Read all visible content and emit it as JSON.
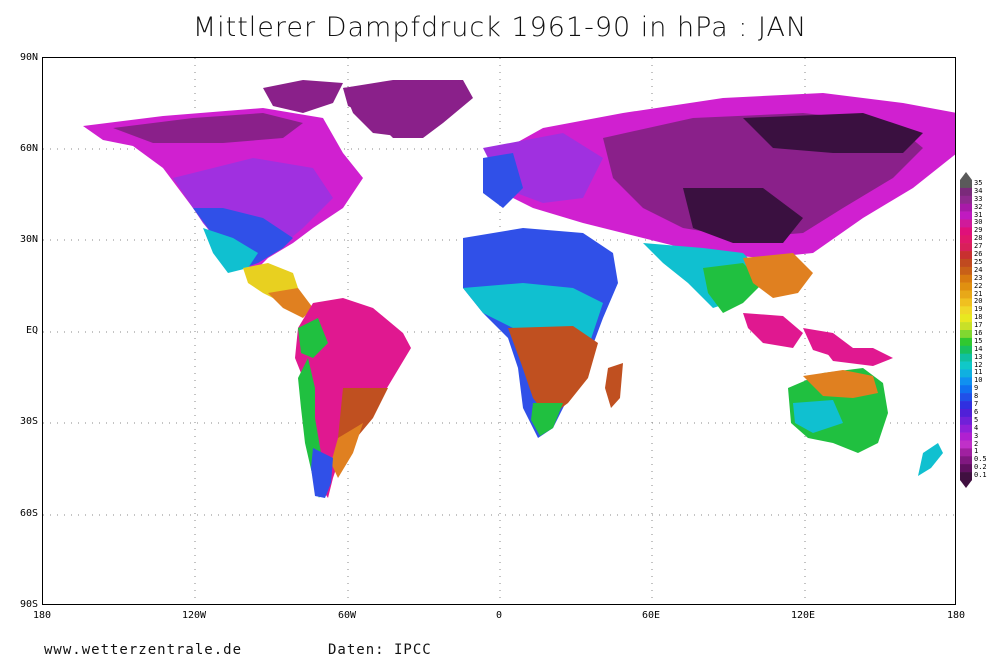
{
  "title": "Mittlerer Dampfdruck 1961-90 in hPa : JAN",
  "lat_labels": [
    "90N",
    "60N",
    "30N",
    "EQ",
    "30S",
    "60S",
    "90S"
  ],
  "lon_labels": [
    "180",
    "120W",
    "60W",
    "0",
    "60E",
    "120E",
    "180"
  ],
  "footer": {
    "source_site": "www.wetterzentrale.de",
    "data_credit": "Daten: IPCC"
  },
  "colorbar": {
    "levels": [
      "35",
      "34",
      "33",
      "32",
      "31",
      "30",
      "29",
      "28",
      "27",
      "26",
      "25",
      "24",
      "23",
      "22",
      "21",
      "20",
      "19",
      "18",
      "17",
      "16",
      "15",
      "14",
      "13",
      "12",
      "11",
      "10",
      "9",
      "8",
      "7",
      "6",
      "5",
      "4",
      "3",
      "2",
      "1",
      "0.5",
      "0.2",
      "0.1"
    ],
    "colors": [
      "#5a5a5a",
      "#7a2a7a",
      "#8e2a8e",
      "#a81aa8",
      "#c01ac0",
      "#d01a9a",
      "#e0107a",
      "#e0186a",
      "#d8205a",
      "#c83030",
      "#c04a20",
      "#c86018",
      "#d87a10",
      "#e09010",
      "#e8a818",
      "#f0c020",
      "#f0d828",
      "#e8e820",
      "#c8e028",
      "#80d830",
      "#30c830",
      "#18c060",
      "#10c0a0",
      "#10c8c8",
      "#10b0e0",
      "#1090f0",
      "#1070f0",
      "#2050e8",
      "#3030e0",
      "#5020d8",
      "#7020d8",
      "#9020d8",
      "#b020d0",
      "#c030c8",
      "#a020a0",
      "#801880",
      "#601060",
      "#401040"
    ]
  },
  "map_colors": {
    "very_low": "#3a1040",
    "low": "#8a208a",
    "magenta": "#d020d0",
    "violet": "#a030e0",
    "blue": "#3050e8",
    "cyan": "#10c0d0",
    "green": "#20c040",
    "yellow": "#e8d020",
    "orange": "#e08020",
    "brown": "#c05020",
    "crimson": "#d01060",
    "pink": "#e01890"
  }
}
